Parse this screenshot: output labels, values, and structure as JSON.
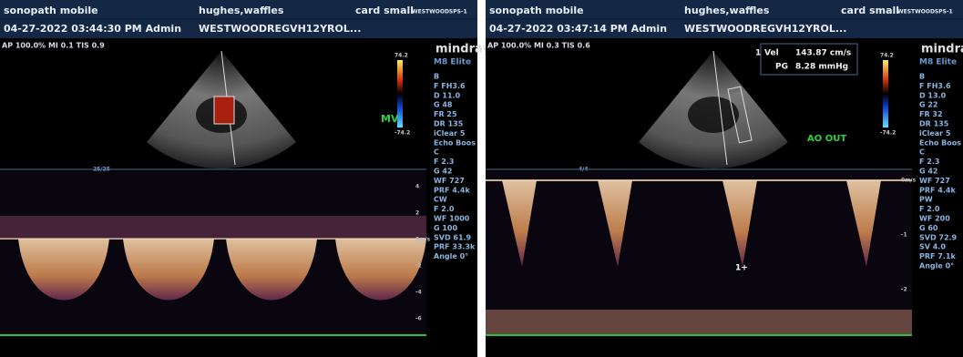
{
  "panels": [
    {
      "header": {
        "left1": "sonopath mobile",
        "mid1": "hughes,waffles",
        "right1": "card small",
        "tag": "WESTWOODSPS-1",
        "left2": "04-27-2022 03:44:30 PM  Admin",
        "mid2": "WESTWOODREGVH12YROL..."
      },
      "status": "AP 100.0% MI 0.1 TIS 0.9",
      "brand": "mindray",
      "model": "M8 Elite",
      "params": [
        "B",
        "F FH3.6",
        "D 11.0",
        "G 48",
        "FR 25",
        "DR 135",
        "iClear 5",
        "Echo Boos",
        "C",
        "F 2.3",
        "G 42",
        "WF 727",
        "PRF 4.4k",
        "CW",
        "F 2.0",
        "WF 1000",
        "G 100",
        "SVD 61.9",
        "PRF 33.3k",
        "Angle 0°"
      ],
      "color_max": "74.2",
      "color_min": "-74.2",
      "label": "MV",
      "sweep": "25/25",
      "scale": [
        "4",
        "2",
        "0m/s",
        "-2",
        "-4",
        "-6"
      ]
    },
    {
      "header": {
        "left1": "sonopath mobile",
        "mid1": "hughes,waffles",
        "right1": "card small",
        "tag": "WESTWOODSPS-1",
        "left2": "04-27-2022 03:47:14 PM  Admin",
        "mid2": "WESTWOODREGVH12YROL..."
      },
      "status": "AP 100.0% MI 0.3 TIS 0.6",
      "brand": "mindray",
      "model": "M8 Elite",
      "params": [
        "B",
        "F FH3.6",
        "D 13.0",
        "G 22",
        "FR 32",
        "DR 135",
        "iClear 5",
        "Echo Boos",
        "C",
        "F 2.3",
        "G 42",
        "WF 727",
        "PRF 4.4k",
        "PW",
        "F 2.0",
        "WF 200",
        "G 60",
        "SVD 72.9",
        "SV 4.0",
        "PRF 7.1k",
        "Angle 0°"
      ],
      "color_max": "74.2",
      "color_min": "-74.2",
      "label": "AO OUT",
      "sweep": "4/4",
      "scale": [
        "0m/s",
        "-1",
        "-2"
      ],
      "measure": {
        "index": "1",
        "vel_label": "Vel",
        "vel": "143.87 cm/s",
        "pg_label": "PG",
        "pg": "8.28 mmHg",
        "marker": "1+"
      }
    }
  ]
}
